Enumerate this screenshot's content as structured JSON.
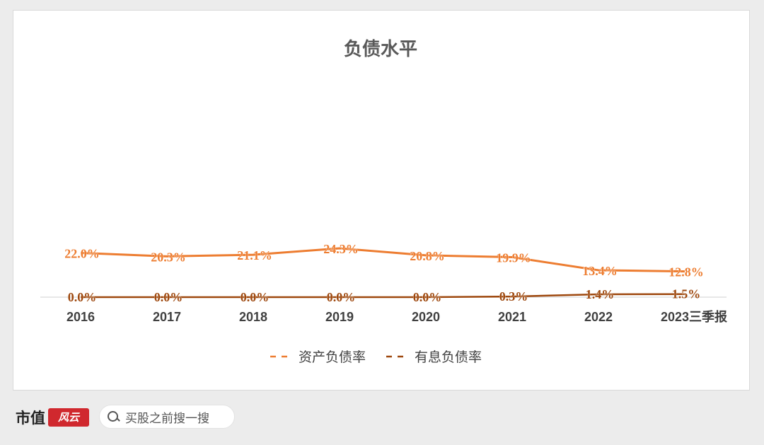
{
  "chart_data": {
    "type": "line",
    "title": "负债水平",
    "categories": [
      "2016",
      "2017",
      "2018",
      "2019",
      "2020",
      "2021",
      "2022",
      "2023三季报"
    ],
    "series": [
      {
        "name": "资产负债率",
        "values": [
          22.0,
          20.3,
          21.1,
          24.3,
          20.8,
          19.9,
          13.4,
          12.8
        ],
        "labels": [
          "22.0%",
          "20.3%",
          "21.1%",
          "24.3%",
          "20.8%",
          "19.9%",
          "13.4%",
          "12.8%"
        ],
        "color": "#ed7d31"
      },
      {
        "name": "有息负债率",
        "values": [
          0.0,
          0.0,
          0.0,
          0.0,
          0.0,
          0.3,
          1.4,
          1.5
        ],
        "labels": [
          "0.0%",
          "0.0%",
          "0.0%",
          "0.0%",
          "0.0%",
          "0.3%",
          "1.4%",
          "1.5%"
        ],
        "color": "#9e480e"
      }
    ],
    "ylim": [
      0,
      100
    ],
    "grid": false,
    "legend_position": "bottom"
  },
  "footer": {
    "brand_text": "市值",
    "brand_badge": "风云",
    "search_placeholder": "买股之前搜一搜"
  }
}
